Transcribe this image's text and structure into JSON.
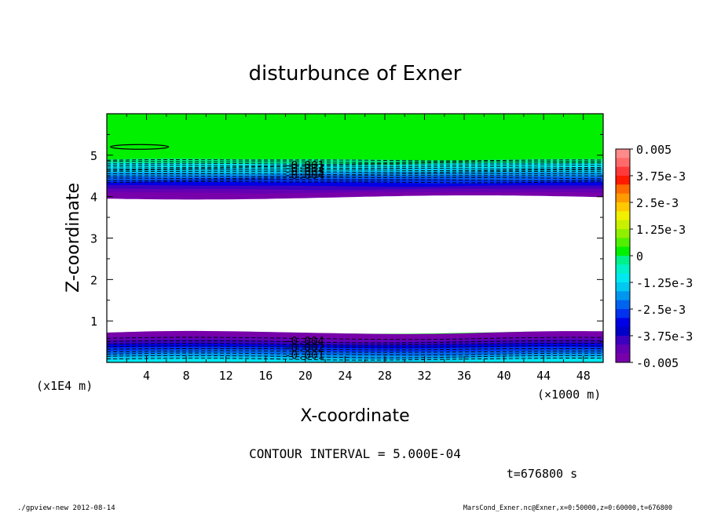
{
  "chart_data": {
    "type": "heatmap",
    "title": "disturbunce of Exner",
    "xlabel": "X-coordinate",
    "ylabel": "Z-coordinate",
    "x_unit": "(×1000 m)",
    "y_unit": "(x1E4 m)",
    "xlim": [
      0,
      50
    ],
    "ylim": [
      0,
      6
    ],
    "x_ticks": [
      "4",
      "8",
      "12",
      "16",
      "20",
      "24",
      "28",
      "32",
      "36",
      "40",
      "44",
      "48"
    ],
    "y_ticks": [
      "1",
      "2",
      "3",
      "4",
      "5"
    ],
    "colorbar": {
      "range": [
        -0.005,
        0.005
      ],
      "labels": [
        "0.005",
        "3.75e-3",
        "2.5e-3",
        "1.25e-3",
        "0",
        "-1.25e-3",
        "-2.5e-3",
        "-3.75e-3",
        "-0.005"
      ],
      "colors": [
        "#ff8a8a",
        "#ff6a6a",
        "#ff3a3a",
        "#ff1a00",
        "#ff6a00",
        "#ff9a00",
        "#ffc800",
        "#f0f000",
        "#c8f000",
        "#90f000",
        "#50f000",
        "#00f000",
        "#00f08a",
        "#00f0c8",
        "#00e8f0",
        "#00c8f0",
        "#0096f0",
        "#0064f0",
        "#0032f0",
        "#0000e6",
        "#0000c8",
        "#3c00c0",
        "#6400b4",
        "#7800aa"
      ],
      "unit": ""
    },
    "contour_interval": "CONTOUR INTERVAL = 5.000E-04",
    "contour_labels": [
      "-0.001",
      "-0.002",
      "-0.003",
      "-0.004",
      "-0.004",
      "-0.002",
      "-0.001"
    ],
    "time": "t=676800 s",
    "regions": {
      "upper_band_z": [
        3.95,
        4.9
      ],
      "lower_band_z": [
        0,
        0.75
      ],
      "blank_region_z": [
        0.75,
        3.95
      ],
      "background_value": 0
    }
  },
  "footer": {
    "left": "./gpview-new   2012-08-14",
    "right": "MarsCond_Exner.nc@Exner,x=0:50000,z=0:60000,t=676800"
  },
  "colors": {
    "background_green": "#00f000",
    "deep_violet": "#7800aa",
    "blue": "#0000e6",
    "cyan": "#00e8f0"
  }
}
